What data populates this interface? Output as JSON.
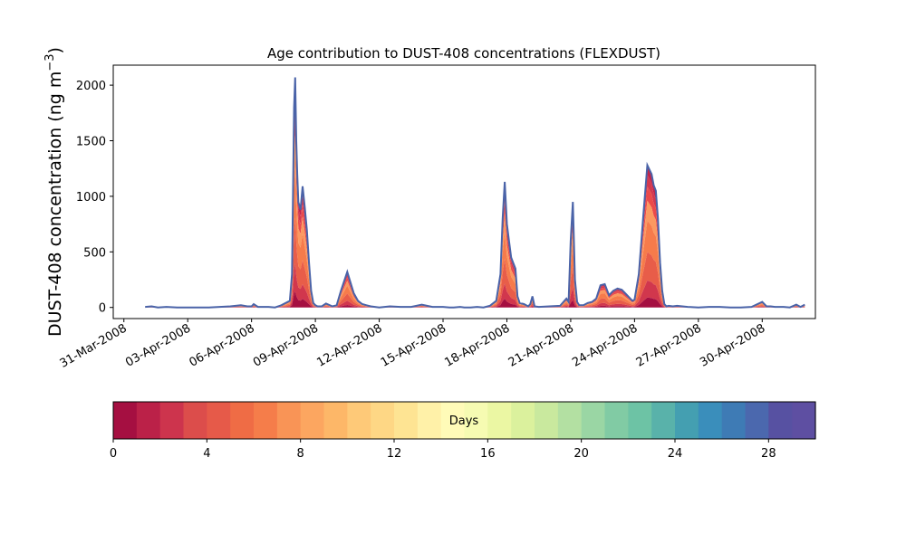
{
  "chart_data": {
    "type": "area",
    "stacked": true,
    "title": "Age contribution to DUST-408 concentrations (FLEXDUST)",
    "ylabel_main": "DUST-408 concentration (ng m",
    "ylabel_sup": "−3",
    "ylabel_close": ")",
    "xlabel": "",
    "ylim": [
      -100,
      2180
    ],
    "yticks": [
      0,
      500,
      1000,
      1500,
      2000
    ],
    "ytick_labels": [
      "0",
      "500",
      "1000",
      "1500",
      "2000"
    ],
    "xlim": [
      -0.5,
      32.5
    ],
    "xticks": [
      0,
      3,
      6,
      9,
      12,
      15,
      18,
      21,
      24,
      27,
      30
    ],
    "xtick_labels": [
      "31-Mar-2008",
      "03-Apr-2008",
      "06-Apr-2008",
      "09-Apr-2008",
      "12-Apr-2008",
      "15-Apr-2008",
      "18-Apr-2008",
      "21-Apr-2008",
      "24-Apr-2008",
      "27-Apr-2008",
      "30-Apr-2008"
    ],
    "total_series": {
      "name": "total",
      "x": [
        1.0,
        1.3,
        1.6,
        2.0,
        2.5,
        3.0,
        3.5,
        4.0,
        4.5,
        5.0,
        5.5,
        5.8,
        6.0,
        6.1,
        6.3,
        6.5,
        6.8,
        7.1,
        7.4,
        7.8,
        7.9,
        8.0,
        8.05,
        8.1,
        8.15,
        8.2,
        8.3,
        8.4,
        8.5,
        8.6,
        8.7,
        8.8,
        8.9,
        9.0,
        9.1,
        9.3,
        9.5,
        9.8,
        10.0,
        10.2,
        10.5,
        10.8,
        11.0,
        11.2,
        11.4,
        11.6,
        11.8,
        12.0,
        12.5,
        13.0,
        13.5,
        14.0,
        14.5,
        15.0,
        15.3,
        15.5,
        15.8,
        16.0,
        16.3,
        16.6,
        16.9,
        17.2,
        17.5,
        17.7,
        17.8,
        17.9,
        18.0,
        18.1,
        18.2,
        18.3,
        18.4,
        18.5,
        18.6,
        18.8,
        19.0,
        19.1,
        19.2,
        19.3,
        19.5,
        20.0,
        20.5,
        20.8,
        20.9,
        21.0,
        21.1,
        21.2,
        21.3,
        21.4,
        21.6,
        21.8,
        22.0,
        22.2,
        22.4,
        22.6,
        22.8,
        23.0,
        23.2,
        23.4,
        23.6,
        23.8,
        23.9,
        24.0,
        24.2,
        24.4,
        24.6,
        24.8,
        24.9,
        25.0,
        25.1,
        25.2,
        25.3,
        25.4,
        25.5,
        25.6,
        25.8,
        26.0,
        26.5,
        27.0,
        27.5,
        28.0,
        28.5,
        29.0,
        29.5,
        30.0,
        30.2,
        30.4,
        30.6,
        30.8,
        31.0,
        31.3,
        31.6,
        31.8,
        32.0
      ],
      "values": [
        5,
        10,
        0,
        5,
        0,
        0,
        0,
        0,
        5,
        10,
        20,
        10,
        10,
        30,
        5,
        5,
        5,
        0,
        20,
        60,
        300,
        1800,
        2070,
        1500,
        1200,
        950,
        880,
        1090,
        900,
        700,
        400,
        150,
        40,
        20,
        10,
        10,
        35,
        10,
        20,
        150,
        320,
        130,
        60,
        30,
        20,
        10,
        5,
        0,
        10,
        5,
        5,
        25,
        5,
        5,
        0,
        0,
        5,
        0,
        0,
        5,
        0,
        15,
        60,
        300,
        800,
        1130,
        750,
        600,
        450,
        400,
        350,
        100,
        40,
        30,
        10,
        30,
        100,
        10,
        5,
        10,
        15,
        80,
        50,
        600,
        950,
        250,
        50,
        20,
        20,
        40,
        50,
        80,
        200,
        210,
        110,
        150,
        170,
        160,
        120,
        80,
        60,
        70,
        300,
        800,
        1280,
        1200,
        1100,
        1050,
        800,
        400,
        150,
        30,
        10,
        15,
        10,
        15,
        5,
        0,
        5,
        5,
        0,
        0,
        5,
        50,
        10,
        10,
        5,
        5,
        5,
        0,
        25,
        5,
        25
      ]
    },
    "layer_colors": [
      "#a50f41",
      "#d1374d",
      "#e85d49",
      "#f67b4b",
      "#fb9960",
      "#eb4a4a",
      "#d4394f",
      "#c2254a"
    ],
    "layer_fractions": [
      0.07,
      0.12,
      0.2,
      0.22,
      0.14,
      0.1,
      0.08,
      0.07
    ],
    "outline_color": "#4a63a8",
    "colorbar": {
      "label": "Days",
      "min": 0,
      "max": 30,
      "ticks": [
        0,
        4,
        8,
        12,
        16,
        20,
        24,
        28
      ],
      "tick_labels": [
        "0",
        "4",
        "8",
        "12",
        "16",
        "20",
        "24",
        "28"
      ],
      "colors": [
        "#a50f41",
        "#bb2148",
        "#cd344d",
        "#dc4d4b",
        "#e65a49",
        "#ef6c45",
        "#f57d4a",
        "#f99456",
        "#fca660",
        "#fdb768",
        "#fec978",
        "#fed785",
        "#fee493",
        "#fff1a8",
        "#fffbb8",
        "#f6fbb2",
        "#ebf7a3",
        "#dbf19d",
        "#c9e99e",
        "#b3e0a2",
        "#9ad6a4",
        "#81cba4",
        "#6dc3a5",
        "#59b2aa",
        "#449fb1",
        "#3a8ebb",
        "#3e7bb5",
        "#4b68ae",
        "#5751a2",
        "#5e4fa2"
      ]
    }
  }
}
